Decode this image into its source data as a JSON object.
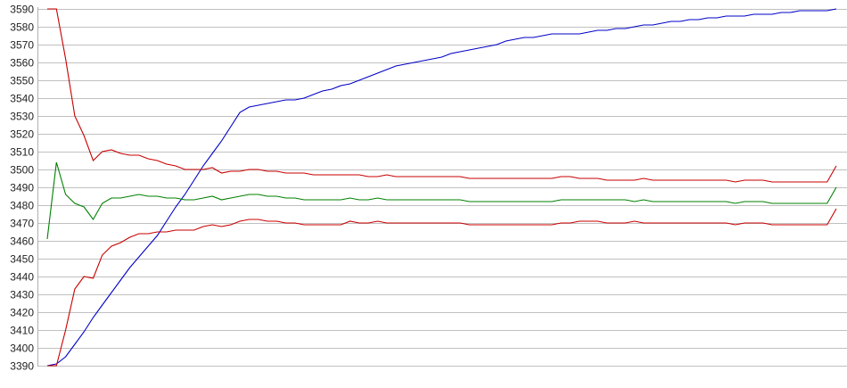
{
  "chart_data": {
    "type": "line",
    "title": "",
    "xlabel": "",
    "ylabel": "",
    "ylim": [
      3390,
      3590
    ],
    "yticks": [
      3390,
      3400,
      3410,
      3420,
      3430,
      3440,
      3450,
      3460,
      3470,
      3480,
      3490,
      3500,
      3510,
      3520,
      3530,
      3540,
      3550,
      3560,
      3570,
      3580,
      3590
    ],
    "grid": "horizontal",
    "legend": "none",
    "series": [
      {
        "color": "#0000c8",
        "values": [
          3390,
          3391,
          3395,
          3402,
          3409,
          3417,
          3424,
          3431,
          3438,
          3445,
          3451,
          3457,
          3463,
          3471,
          3479,
          3486,
          3494,
          3502,
          3509,
          3516,
          3524,
          3532,
          3535,
          3536,
          3537,
          3538,
          3539,
          3539,
          3540,
          3542,
          3544,
          3545,
          3547,
          3548,
          3550,
          3552,
          3554,
          3556,
          3558,
          3559,
          3560,
          3561,
          3562,
          3563,
          3565,
          3566,
          3567,
          3568,
          3569,
          3570,
          3572,
          3573,
          3574,
          3574,
          3575,
          3576,
          3576,
          3576,
          3576,
          3577,
          3578,
          3578,
          3579,
          3579,
          3580,
          3581,
          3581,
          3582,
          3583,
          3583,
          3584,
          3584,
          3585,
          3585,
          3586,
          3586,
          3586,
          3587,
          3587,
          3587,
          3588,
          3588,
          3589,
          3589,
          3589,
          3589,
          3590
        ]
      },
      {
        "color": "#c80000",
        "values": [
          3590,
          3590,
          3562,
          3530,
          3519,
          3505,
          3510,
          3511,
          3509,
          3508,
          3508,
          3506,
          3505,
          3503,
          3502,
          3500,
          3500,
          3500,
          3501,
          3498,
          3499,
          3499,
          3500,
          3500,
          3499,
          3499,
          3498,
          3498,
          3498,
          3497,
          3497,
          3497,
          3497,
          3497,
          3497,
          3496,
          3496,
          3497,
          3496,
          3496,
          3496,
          3496,
          3496,
          3496,
          3496,
          3496,
          3495,
          3495,
          3495,
          3495,
          3495,
          3495,
          3495,
          3495,
          3495,
          3495,
          3496,
          3496,
          3495,
          3495,
          3495,
          3494,
          3494,
          3494,
          3494,
          3495,
          3494,
          3494,
          3494,
          3494,
          3494,
          3494,
          3494,
          3494,
          3494,
          3493,
          3494,
          3494,
          3494,
          3493,
          3493,
          3493,
          3493,
          3493,
          3493,
          3493,
          3502
        ]
      },
      {
        "color": "#008000",
        "values": [
          3461,
          3504,
          3486,
          3481,
          3479,
          3472,
          3481,
          3484,
          3484,
          3485,
          3486,
          3485,
          3485,
          3484,
          3484,
          3483,
          3483,
          3484,
          3485,
          3483,
          3484,
          3485,
          3486,
          3486,
          3485,
          3485,
          3484,
          3484,
          3483,
          3483,
          3483,
          3483,
          3483,
          3484,
          3483,
          3483,
          3484,
          3483,
          3483,
          3483,
          3483,
          3483,
          3483,
          3483,
          3483,
          3483,
          3482,
          3482,
          3482,
          3482,
          3482,
          3482,
          3482,
          3482,
          3482,
          3482,
          3483,
          3483,
          3483,
          3483,
          3483,
          3483,
          3483,
          3483,
          3482,
          3483,
          3482,
          3482,
          3482,
          3482,
          3482,
          3482,
          3482,
          3482,
          3482,
          3481,
          3482,
          3482,
          3482,
          3481,
          3481,
          3481,
          3481,
          3481,
          3481,
          3481,
          3490
        ]
      },
      {
        "color": "#c80000",
        "values": [
          3390,
          3390,
          3410,
          3433,
          3440,
          3439,
          3452,
          3457,
          3459,
          3462,
          3464,
          3464,
          3465,
          3465,
          3466,
          3466,
          3466,
          3468,
          3469,
          3468,
          3469,
          3471,
          3472,
          3472,
          3471,
          3471,
          3470,
          3470,
          3469,
          3469,
          3469,
          3469,
          3469,
          3471,
          3470,
          3470,
          3471,
          3470,
          3470,
          3470,
          3470,
          3470,
          3470,
          3470,
          3470,
          3470,
          3469,
          3469,
          3469,
          3469,
          3469,
          3469,
          3469,
          3469,
          3469,
          3469,
          3470,
          3470,
          3471,
          3471,
          3471,
          3470,
          3470,
          3470,
          3471,
          3470,
          3470,
          3470,
          3470,
          3470,
          3470,
          3470,
          3470,
          3470,
          3470,
          3469,
          3470,
          3470,
          3470,
          3469,
          3469,
          3469,
          3469,
          3469,
          3469,
          3469,
          3478
        ]
      }
    ]
  }
}
